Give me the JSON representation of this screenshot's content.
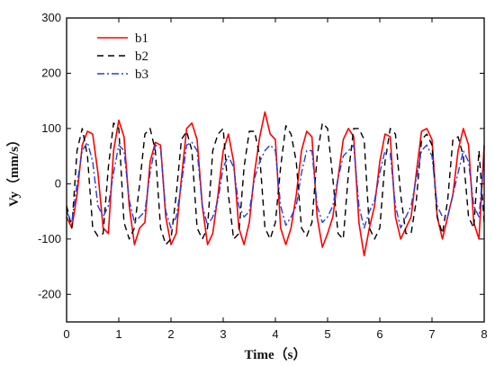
{
  "chart_data": {
    "type": "line",
    "xlabel": "Time（s）",
    "ylabel": "Vy（mm/s）",
    "xlim": [
      0,
      8
    ],
    "ylim": [
      -250,
      300
    ],
    "xticks": [
      "0",
      "1",
      "2",
      "3",
      "4",
      "5",
      "6",
      "7",
      "8"
    ],
    "yticks": [
      "-200",
      "-100",
      "0",
      "100",
      "200",
      "300"
    ],
    "legend_position": "top-left",
    "grid": false,
    "series": [
      {
        "name": "b1",
        "color": "#ff0000",
        "style": "solid",
        "x": [
          0,
          0.1,
          0.2,
          0.3,
          0.4,
          0.5,
          0.6,
          0.7,
          0.8,
          0.9,
          1.0,
          1.1,
          1.2,
          1.3,
          1.4,
          1.5,
          1.6,
          1.7,
          1.8,
          1.9,
          2.0,
          2.1,
          2.2,
          2.3,
          2.4,
          2.5,
          2.6,
          2.7,
          2.8,
          2.9,
          3.0,
          3.1,
          3.2,
          3.3,
          3.4,
          3.5,
          3.6,
          3.7,
          3.8,
          3.9,
          4.0,
          4.1,
          4.2,
          4.3,
          4.4,
          4.5,
          4.6,
          4.7,
          4.8,
          4.9,
          5.0,
          5.1,
          5.2,
          5.3,
          5.4,
          5.5,
          5.6,
          5.7,
          5.8,
          5.9,
          6.0,
          6.1,
          6.2,
          6.3,
          6.4,
          6.5,
          6.6,
          6.7,
          6.8,
          6.9,
          7.0,
          7.1,
          7.2,
          7.3,
          7.4,
          7.5,
          7.6,
          7.7,
          7.8,
          7.9,
          8.0
        ],
        "values": [
          -60,
          -80,
          -20,
          70,
          95,
          90,
          20,
          -80,
          -90,
          60,
          115,
          85,
          -40,
          -110,
          -80,
          -70,
          40,
          75,
          70,
          -60,
          -110,
          -90,
          10,
          100,
          110,
          80,
          -40,
          -110,
          -90,
          -20,
          60,
          90,
          40,
          -80,
          -110,
          -70,
          20,
          85,
          130,
          90,
          80,
          -80,
          -110,
          -80,
          -20,
          60,
          95,
          85,
          -60,
          -115,
          -90,
          -60,
          10,
          80,
          100,
          85,
          -70,
          -130,
          -80,
          -40,
          40,
          90,
          85,
          -60,
          -100,
          -80,
          -60,
          20,
          95,
          100,
          80,
          -60,
          -100,
          -60,
          -20,
          60,
          100,
          70,
          -70,
          -100,
          70
        ]
      },
      {
        "name": "b2",
        "color": "#000000",
        "style": "dashed",
        "x": [
          0,
          0.1,
          0.2,
          0.3,
          0.4,
          0.5,
          0.6,
          0.7,
          0.8,
          0.9,
          1.0,
          1.1,
          1.2,
          1.3,
          1.4,
          1.5,
          1.6,
          1.7,
          1.8,
          1.9,
          2.0,
          2.1,
          2.2,
          2.3,
          2.4,
          2.5,
          2.6,
          2.7,
          2.8,
          2.9,
          3.0,
          3.1,
          3.2,
          3.3,
          3.4,
          3.5,
          3.6,
          3.7,
          3.8,
          3.9,
          4.0,
          4.1,
          4.2,
          4.3,
          4.4,
          4.5,
          4.6,
          4.7,
          4.8,
          4.9,
          5.0,
          5.1,
          5.2,
          5.3,
          5.4,
          5.5,
          5.6,
          5.7,
          5.8,
          5.9,
          6.0,
          6.1,
          6.2,
          6.3,
          6.4,
          6.5,
          6.6,
          6.7,
          6.8,
          6.9,
          7.0,
          7.1,
          7.2,
          7.3,
          7.4,
          7.5,
          7.6,
          7.7,
          7.8,
          7.9,
          8.0
        ],
        "values": [
          -40,
          -80,
          60,
          100,
          50,
          -80,
          -95,
          -90,
          30,
          110,
          100,
          -70,
          -100,
          -80,
          0,
          90,
          100,
          60,
          -80,
          -110,
          -100,
          -20,
          80,
          95,
          60,
          -80,
          -100,
          -80,
          60,
          90,
          100,
          -20,
          -100,
          -90,
          30,
          95,
          95,
          50,
          -80,
          -100,
          -70,
          30,
          105,
          90,
          40,
          -80,
          -95,
          -70,
          50,
          110,
          100,
          10,
          -90,
          -100,
          20,
          100,
          100,
          80,
          -80,
          -100,
          -80,
          40,
          100,
          90,
          -20,
          -90,
          -90,
          -30,
          80,
          90,
          70,
          -60,
          -90,
          -30,
          80,
          85,
          50,
          -60,
          -80,
          60,
          -70
        ]
      },
      {
        "name": "b3",
        "color": "#1f3fe8",
        "style": "dashdot",
        "x": [
          0,
          0.1,
          0.2,
          0.3,
          0.4,
          0.5,
          0.6,
          0.7,
          0.8,
          0.9,
          1.0,
          1.1,
          1.2,
          1.3,
          1.4,
          1.5,
          1.6,
          1.7,
          1.8,
          1.9,
          2.0,
          2.1,
          2.2,
          2.3,
          2.4,
          2.5,
          2.6,
          2.7,
          2.8,
          2.9,
          3.0,
          3.1,
          3.2,
          3.3,
          3.4,
          3.5,
          3.6,
          3.7,
          3.8,
          3.9,
          4.0,
          4.1,
          4.2,
          4.3,
          4.4,
          4.5,
          4.6,
          4.7,
          4.8,
          4.9,
          5.0,
          5.1,
          5.2,
          5.3,
          5.4,
          5.5,
          5.6,
          5.7,
          5.8,
          5.9,
          6.0,
          6.1,
          6.2,
          6.3,
          6.4,
          6.5,
          6.6,
          6.7,
          6.8,
          6.9,
          7.0,
          7.1,
          7.2,
          7.3,
          7.4,
          7.5,
          7.6,
          7.7,
          7.8,
          7.9,
          8.0
        ],
        "values": [
          -50,
          -70,
          0,
          60,
          75,
          40,
          -40,
          -60,
          -40,
          20,
          70,
          60,
          -30,
          -70,
          -60,
          -50,
          20,
          70,
          65,
          -50,
          -80,
          -60,
          0,
          70,
          75,
          60,
          -40,
          -75,
          -60,
          -30,
          30,
          50,
          30,
          -40,
          -60,
          -50,
          10,
          40,
          60,
          70,
          60,
          -40,
          -75,
          -60,
          -40,
          20,
          60,
          60,
          -40,
          -70,
          -60,
          -40,
          10,
          50,
          60,
          70,
          -40,
          -80,
          -50,
          -30,
          20,
          60,
          55,
          -40,
          -80,
          -60,
          -40,
          10,
          60,
          70,
          50,
          -40,
          -60,
          -60,
          -20,
          20,
          60,
          40,
          -40,
          -60,
          50
        ]
      }
    ]
  }
}
